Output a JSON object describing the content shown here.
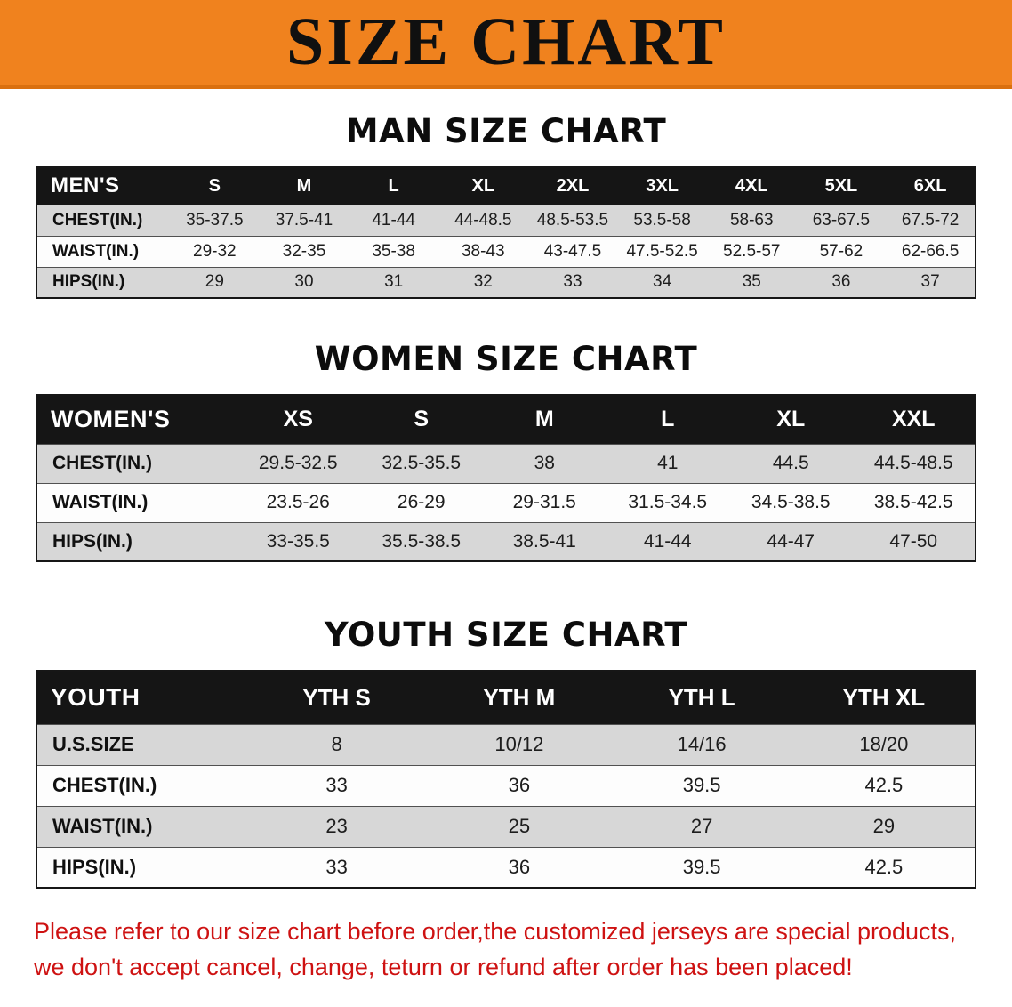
{
  "banner": {
    "title": "SIZE CHART"
  },
  "colors": {
    "banner_bg": "#F0821E",
    "banner_border": "#DA700F",
    "banner_text": "#101010",
    "header_bg": "#151515",
    "header_text": "#FFFFFF",
    "row_alt": "#D7D7D7",
    "row_base": "#FDFDFD",
    "notice_red": "#CE1212"
  },
  "sections": [
    {
      "id": "men",
      "heading": "MAN SIZE CHART",
      "table": {
        "header": [
          "MEN'S",
          "S",
          "M",
          "L",
          "XL",
          "2XL",
          "3XL",
          "4XL",
          "5XL",
          "6XL"
        ],
        "rows": [
          [
            "CHEST(IN.)",
            "35-37.5",
            "37.5-41",
            "41-44",
            "44-48.5",
            "48.5-53.5",
            "53.5-58",
            "58-63",
            "63-67.5",
            "67.5-72"
          ],
          [
            "WAIST(IN.)",
            "29-32",
            "32-35",
            "35-38",
            "38-43",
            "43-47.5",
            "47.5-52.5",
            "52.5-57",
            "57-62",
            "62-66.5"
          ],
          [
            "HIPS(IN.)",
            "29",
            "30",
            "31",
            "32",
            "33",
            "34",
            "35",
            "36",
            "37"
          ]
        ]
      }
    },
    {
      "id": "women",
      "heading": "WOMEN SIZE CHART",
      "table": {
        "header": [
          "WOMEN'S",
          "XS",
          "S",
          "M",
          "L",
          "XL",
          "XXL"
        ],
        "rows": [
          [
            "CHEST(IN.)",
            "29.5-32.5",
            "32.5-35.5",
            "38",
            "41",
            "44.5",
            "44.5-48.5"
          ],
          [
            "WAIST(IN.)",
            "23.5-26",
            "26-29",
            "29-31.5",
            "31.5-34.5",
            "34.5-38.5",
            "38.5-42.5"
          ],
          [
            "HIPS(IN.)",
            "33-35.5",
            "35.5-38.5",
            "38.5-41",
            "41-44",
            "44-47",
            "47-50"
          ]
        ]
      }
    },
    {
      "id": "youth",
      "heading": "YOUTH SIZE CHART",
      "table": {
        "header": [
          "YOUTH",
          "YTH S",
          "YTH M",
          "YTH L",
          "YTH XL"
        ],
        "rows": [
          [
            "U.S.SIZE",
            "8",
            "10/12",
            "14/16",
            "18/20"
          ],
          [
            "CHEST(IN.)",
            "33",
            "36",
            "39.5",
            "42.5"
          ],
          [
            "WAIST(IN.)",
            "23",
            "25",
            "27",
            "29"
          ],
          [
            "HIPS(IN.)",
            "33",
            "36",
            "39.5",
            "42.5"
          ]
        ]
      }
    }
  ],
  "footer": {
    "lines": [
      "Please refer to our size chart before order,the customized jerseys are special products,",
      "we don't accept cancel, change, teturn or refund after order has been placed!"
    ]
  }
}
